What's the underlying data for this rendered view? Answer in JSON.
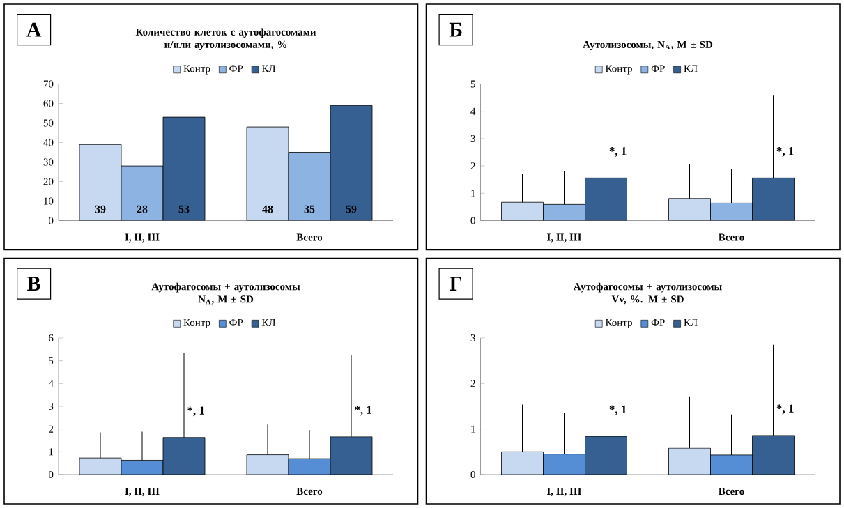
{
  "chart_data": [
    {
      "type": "bar",
      "title": "Количество клеток с аутофагосомами и/или аутолизосомами, %",
      "categories": [
        "I, II, III",
        "Всего"
      ],
      "series": [
        {
          "name": "Контр",
          "color": "#c6d9f1",
          "values": [
            39,
            48
          ]
        },
        {
          "name": "ФР",
          "color": "#8db3e2",
          "values": [
            28,
            35
          ]
        },
        {
          "name": "КЛ",
          "color": "#376092",
          "values": [
            53,
            59
          ]
        }
      ],
      "ylim": [
        0,
        70
      ],
      "yticks": [
        0,
        10,
        20,
        30,
        40,
        50,
        60,
        70
      ],
      "legend": "top",
      "data_labels": true,
      "annotations": [
        "А"
      ]
    },
    {
      "type": "bar",
      "title": "Аутолизосомы, N$_{A}$, M ± SD",
      "categories": [
        "I, II, III",
        "Всего"
      ],
      "series": [
        {
          "name": "Контр",
          "color": "#c6d9f1",
          "values": [
            0.67,
            0.81
          ],
          "errors": [
            [
              0.67,
              1.7
            ],
            [
              0.81,
              2.06
            ]
          ]
        },
        {
          "name": "ФР",
          "color": "#8db3e2",
          "values": [
            0.59,
            0.64
          ],
          "errors": [
            [
              0.59,
              1.82
            ],
            [
              0.64,
              1.89
            ]
          ]
        },
        {
          "name": "КЛ",
          "color": "#376092",
          "values": [
            1.56,
            1.56
          ],
          "errors": [
            [
              1.56,
              4.68
            ],
            [
              1.56,
              4.57
            ]
          ]
        }
      ],
      "ylim": [
        0,
        5
      ],
      "yticks": [
        0,
        1,
        2,
        3,
        4,
        5
      ],
      "legend": "top",
      "annotations": [
        "Б",
        "*, 1",
        "*, 1"
      ]
    },
    {
      "type": "bar",
      "title": "Аутофагосомы + аутолизосомы",
      "subtitle": "N$_{A}$, M ± SD",
      "categories": [
        "I, II, III",
        "Всего"
      ],
      "series": [
        {
          "name": "Контр",
          "color": "#c6d9f1",
          "values": [
            0.73,
            0.87
          ],
          "errors": [
            [
              0.73,
              1.85
            ],
            [
              0.87,
              2.2
            ]
          ]
        },
        {
          "name": "ФР",
          "color": "#558ed5",
          "values": [
            0.63,
            0.7
          ],
          "errors": [
            [
              0.63,
              1.88
            ],
            [
              0.7,
              1.96
            ]
          ]
        },
        {
          "name": "КЛ",
          "color": "#376092",
          "values": [
            1.63,
            1.66
          ],
          "errors": [
            [
              1.63,
              5.35
            ],
            [
              1.66,
              5.25
            ]
          ]
        }
      ],
      "ylim": [
        0,
        6
      ],
      "yticks": [
        0,
        1,
        2,
        3,
        4,
        5,
        6
      ],
      "legend": "top",
      "annotations": [
        "В",
        "*, 1",
        "*, 1"
      ]
    },
    {
      "type": "bar",
      "title": "Аутофагосомы + аутолизосомы",
      "subtitle": "Vv, %. M ± SD",
      "categories": [
        "I, II, III",
        "Всего"
      ],
      "series": [
        {
          "name": "Контр",
          "color": "#c6d9f1",
          "values": [
            0.5,
            0.58
          ],
          "errors": [
            [
              0.5,
              1.54
            ],
            [
              0.58,
              1.72
            ]
          ]
        },
        {
          "name": "ФР",
          "color": "#558ed5",
          "values": [
            0.45,
            0.43
          ],
          "errors": [
            [
              0.45,
              1.35
            ],
            [
              0.43,
              1.32
            ]
          ]
        },
        {
          "name": "КЛ",
          "color": "#376092",
          "values": [
            0.84,
            0.86
          ],
          "errors": [
            [
              0.84,
              2.84
            ],
            [
              0.86,
              2.85
            ]
          ]
        }
      ],
      "ylim": [
        0,
        3
      ],
      "yticks": [
        0,
        1,
        2,
        3
      ],
      "legend": "top",
      "annotations": [
        "Г",
        "*, 1",
        "*, 1"
      ]
    }
  ]
}
